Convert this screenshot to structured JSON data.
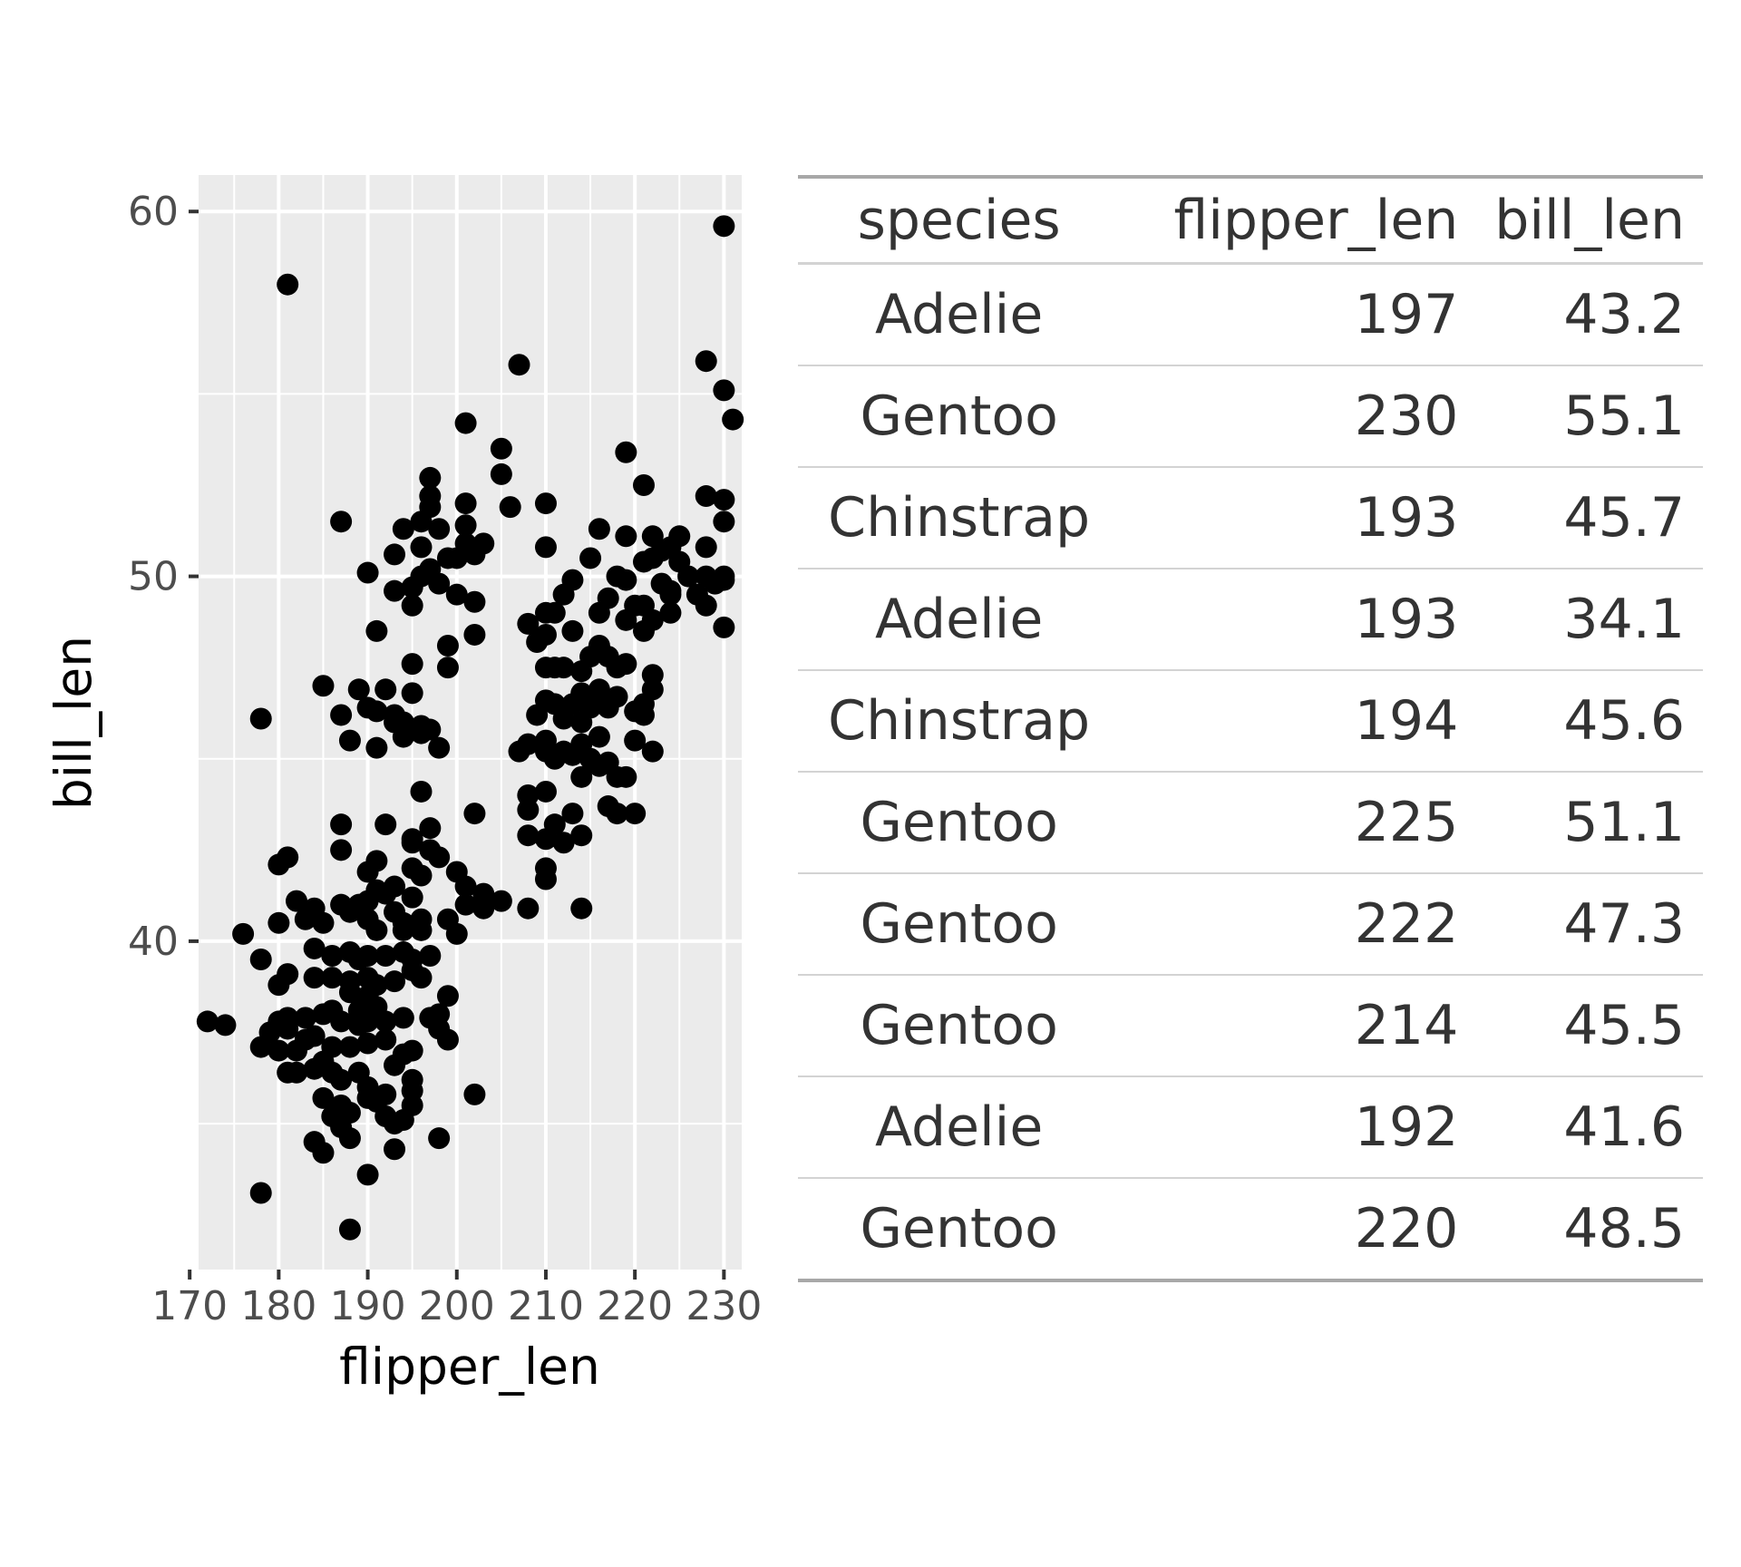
{
  "chart_data": [
    {
      "type": "scatter",
      "xlabel": "flipper_len",
      "ylabel": "bill_len",
      "xlim": [
        171,
        232
      ],
      "ylim": [
        31,
        61
      ],
      "x_ticks": [
        170,
        180,
        190,
        200,
        210,
        220,
        230
      ],
      "y_ticks": [
        40,
        50,
        60
      ],
      "grid": true,
      "panel_color": "#ebebeb",
      "point_color": "#000000",
      "points": [
        [
          181,
          58.0
        ],
        [
          230,
          59.6
        ],
        [
          207,
          55.8
        ],
        [
          228,
          55.9
        ],
        [
          230,
          55.1
        ],
        [
          231,
          54.3
        ],
        [
          201,
          54.2
        ],
        [
          205,
          53.5
        ],
        [
          219,
          53.4
        ],
        [
          205,
          52.8
        ],
        [
          197,
          52.7
        ],
        [
          221,
          52.5
        ],
        [
          197,
          52.2
        ],
        [
          228,
          52.2
        ],
        [
          230,
          52.1
        ],
        [
          201,
          52.0
        ],
        [
          197,
          51.9
        ],
        [
          210,
          52.0
        ],
        [
          206,
          51.9
        ],
        [
          187,
          51.5
        ],
        [
          230,
          51.5
        ],
        [
          196,
          51.5
        ],
        [
          201,
          51.4
        ],
        [
          194,
          51.3
        ],
        [
          198,
          51.3
        ],
        [
          216,
          51.3
        ],
        [
          222,
          51.1
        ],
        [
          219,
          51.1
        ],
        [
          225,
          51.1
        ],
        [
          201,
          50.9
        ],
        [
          203,
          50.9
        ],
        [
          196,
          50.8
        ],
        [
          210,
          50.8
        ],
        [
          224,
          50.8
        ],
        [
          223,
          50.7
        ],
        [
          228,
          50.8
        ],
        [
          193,
          50.6
        ],
        [
          202,
          50.6
        ],
        [
          215,
          50.5
        ],
        [
          221,
          50.4
        ],
        [
          222,
          50.5
        ],
        [
          225,
          50.4
        ],
        [
          199,
          50.5
        ],
        [
          200,
          50.5
        ],
        [
          190,
          50.1
        ],
        [
          197,
          50.2
        ],
        [
          196,
          50.0
        ],
        [
          218,
          50.0
        ],
        [
          226,
          50.0
        ],
        [
          228,
          50.0
        ],
        [
          230,
          50.0
        ],
        [
          219,
          49.9
        ],
        [
          223,
          49.8
        ],
        [
          229,
          49.8
        ],
        [
          195,
          49.7
        ],
        [
          198,
          49.8
        ],
        [
          200,
          49.5
        ],
        [
          193,
          49.6
        ],
        [
          213,
          49.9
        ],
        [
          212,
          49.5
        ],
        [
          217,
          49.4
        ],
        [
          224,
          49.5
        ],
        [
          230,
          49.9
        ],
        [
          227,
          49.5
        ],
        [
          220,
          49.2
        ],
        [
          221,
          49.2
        ],
        [
          224,
          49.6
        ],
        [
          228,
          49.2
        ],
        [
          195,
          49.2
        ],
        [
          202,
          49.3
        ],
        [
          210,
          49.0
        ],
        [
          211,
          49.0
        ],
        [
          216,
          49.0
        ],
        [
          219,
          48.8
        ],
        [
          222,
          48.8
        ],
        [
          224,
          49.0
        ],
        [
          191,
          48.5
        ],
        [
          208,
          48.7
        ],
        [
          209,
          48.2
        ],
        [
          210,
          48.4
        ],
        [
          213,
          48.5
        ],
        [
          221,
          48.5
        ],
        [
          230,
          48.6
        ],
        [
          202,
          48.4
        ],
        [
          199,
          48.1
        ],
        [
          216,
          48.1
        ],
        [
          217,
          47.8
        ],
        [
          215,
          47.8
        ],
        [
          218,
          47.5
        ],
        [
          219,
          47.6
        ],
        [
          195,
          47.6
        ],
        [
          199,
          47.5
        ],
        [
          210,
          47.5
        ],
        [
          211,
          47.5
        ],
        [
          212,
          47.5
        ],
        [
          214,
          47.4
        ],
        [
          222,
          47.3
        ],
        [
          222,
          46.9
        ],
        [
          214,
          46.8
        ],
        [
          216,
          46.9
        ],
        [
          218,
          46.7
        ],
        [
          221,
          46.5
        ],
        [
          217,
          46.4
        ],
        [
          185,
          47.0
        ],
        [
          189,
          46.9
        ],
        [
          192,
          46.9
        ],
        [
          195,
          46.8
        ],
        [
          210,
          46.6
        ],
        [
          211,
          46.5
        ],
        [
          213,
          46.5
        ],
        [
          215,
          46.6
        ],
        [
          220,
          46.3
        ],
        [
          221,
          46.2
        ],
        [
          209,
          46.2
        ],
        [
          212,
          46.1
        ],
        [
          214,
          46.0
        ],
        [
          215,
          46.4
        ],
        [
          190,
          46.4
        ],
        [
          191,
          46.3
        ],
        [
          193,
          46.2
        ],
        [
          196,
          45.9
        ],
        [
          195,
          45.8
        ],
        [
          197,
          45.8
        ],
        [
          187,
          46.2
        ],
        [
          178,
          46.1
        ],
        [
          193,
          46.0
        ],
        [
          194,
          46.0
        ],
        [
          196,
          45.7
        ],
        [
          188,
          45.5
        ],
        [
          191,
          45.3
        ],
        [
          194,
          45.6
        ],
        [
          198,
          45.3
        ],
        [
          208,
          45.4
        ],
        [
          210,
          45.5
        ],
        [
          212,
          45.2
        ],
        [
          214,
          45.4
        ],
        [
          216,
          45.6
        ],
        [
          220,
          45.5
        ],
        [
          222,
          45.2
        ],
        [
          207,
          45.2
        ],
        [
          210,
          45.2
        ],
        [
          211,
          45.0
        ],
        [
          213,
          45.1
        ],
        [
          215,
          45.0
        ],
        [
          216,
          44.8
        ],
        [
          217,
          44.9
        ],
        [
          219,
          44.5
        ],
        [
          214,
          44.5
        ],
        [
          218,
          44.5
        ],
        [
          210,
          44.1
        ],
        [
          208,
          43.6
        ],
        [
          208,
          44.0
        ],
        [
          213,
          43.5
        ],
        [
          218,
          43.5
        ],
        [
          220,
          43.5
        ],
        [
          217,
          43.7
        ],
        [
          211,
          43.2
        ],
        [
          212,
          42.7
        ],
        [
          196,
          44.1
        ],
        [
          202,
          43.5
        ],
        [
          187,
          43.2
        ],
        [
          192,
          43.2
        ],
        [
          197,
          43.1
        ],
        [
          195,
          42.8
        ],
        [
          195,
          42.7
        ],
        [
          197,
          42.5
        ],
        [
          198,
          42.3
        ],
        [
          208,
          42.9
        ],
        [
          210,
          42.8
        ],
        [
          214,
          42.9
        ],
        [
          181,
          42.3
        ],
        [
          180,
          42.1
        ],
        [
          187,
          42.5
        ],
        [
          191,
          42.2
        ],
        [
          190,
          41.9
        ],
        [
          195,
          42.0
        ],
        [
          196,
          41.8
        ],
        [
          200,
          41.9
        ],
        [
          201,
          41.5
        ],
        [
          203,
          41.3
        ],
        [
          201,
          41.0
        ],
        [
          203,
          40.9
        ],
        [
          205,
          41.1
        ],
        [
          210,
          42.0
        ],
        [
          210,
          41.7
        ],
        [
          208,
          40.9
        ],
        [
          214,
          40.9
        ],
        [
          182,
          41.1
        ],
        [
          184,
          40.9
        ],
        [
          183,
          40.6
        ],
        [
          180,
          40.5
        ],
        [
          176,
          40.2
        ],
        [
          188,
          40.8
        ],
        [
          187,
          41.0
        ],
        [
          189,
          41.0
        ],
        [
          190,
          41.1
        ],
        [
          191,
          41.4
        ],
        [
          192,
          41.3
        ],
        [
          193,
          41.5
        ],
        [
          195,
          41.2
        ],
        [
          193,
          40.8
        ],
        [
          194,
          40.5
        ],
        [
          196,
          40.6
        ],
        [
          190,
          40.6
        ],
        [
          191,
          40.3
        ],
        [
          194,
          40.3
        ],
        [
          196,
          40.3
        ],
        [
          199,
          40.6
        ],
        [
          200,
          40.2
        ],
        [
          185,
          40.5
        ],
        [
          184,
          39.8
        ],
        [
          186,
          39.6
        ],
        [
          188,
          39.7
        ],
        [
          189,
          39.5
        ],
        [
          190,
          39.6
        ],
        [
          192,
          39.6
        ],
        [
          194,
          39.7
        ],
        [
          195,
          39.5
        ],
        [
          197,
          39.6
        ],
        [
          178,
          39.5
        ],
        [
          181,
          39.1
        ],
        [
          180,
          38.8
        ],
        [
          184,
          39.0
        ],
        [
          186,
          39.0
        ],
        [
          188,
          38.9
        ],
        [
          190,
          39.0
        ],
        [
          191,
          38.8
        ],
        [
          193,
          38.9
        ],
        [
          195,
          39.2
        ],
        [
          196,
          39.0
        ],
        [
          188,
          38.6
        ],
        [
          190,
          38.5
        ],
        [
          191,
          38.2
        ],
        [
          189,
          38.1
        ],
        [
          186,
          38.1
        ],
        [
          185,
          38.0
        ],
        [
          183,
          37.9
        ],
        [
          181,
          37.9
        ],
        [
          180,
          37.8
        ],
        [
          172,
          37.8
        ],
        [
          174,
          37.7
        ],
        [
          187,
          37.8
        ],
        [
          189,
          37.7
        ],
        [
          190,
          37.8
        ],
        [
          192,
          37.8
        ],
        [
          194,
          37.9
        ],
        [
          197,
          37.9
        ],
        [
          199,
          38.5
        ],
        [
          198,
          38.0
        ],
        [
          198,
          37.6
        ],
        [
          199,
          37.3
        ],
        [
          181,
          37.6
        ],
        [
          183,
          37.3
        ],
        [
          182,
          37.0
        ],
        [
          184,
          37.4
        ],
        [
          186,
          37.1
        ],
        [
          188,
          37.1
        ],
        [
          190,
          37.2
        ],
        [
          192,
          37.3
        ],
        [
          193,
          36.6
        ],
        [
          194,
          36.9
        ],
        [
          195,
          37.0
        ],
        [
          178,
          37.1
        ],
        [
          179,
          37.5
        ],
        [
          180,
          37.0
        ],
        [
          185,
          36.7
        ],
        [
          184,
          36.5
        ],
        [
          186,
          36.4
        ],
        [
          187,
          36.2
        ],
        [
          189,
          36.4
        ],
        [
          190,
          36.0
        ],
        [
          192,
          35.8
        ],
        [
          195,
          36.2
        ],
        [
          195,
          35.9
        ],
        [
          181,
          36.4
        ],
        [
          182,
          36.4
        ],
        [
          185,
          35.7
        ],
        [
          187,
          35.5
        ],
        [
          188,
          35.3
        ],
        [
          190,
          35.7
        ],
        [
          191,
          35.6
        ],
        [
          192,
          35.2
        ],
        [
          194,
          35.1
        ],
        [
          195,
          35.5
        ],
        [
          186,
          35.2
        ],
        [
          187,
          34.9
        ],
        [
          193,
          35.0
        ],
        [
          198,
          34.6
        ],
        [
          202,
          35.8
        ],
        [
          184,
          34.5
        ],
        [
          185,
          34.2
        ],
        [
          188,
          34.6
        ],
        [
          193,
          34.3
        ],
        [
          190,
          33.6
        ],
        [
          178,
          33.1
        ],
        [
          188,
          32.1
        ]
      ]
    },
    {
      "type": "table",
      "columns": [
        "species",
        "flipper_len",
        "bill_len"
      ],
      "rows": [
        [
          "Adelie",
          "197",
          "43.2"
        ],
        [
          "Gentoo",
          "230",
          "55.1"
        ],
        [
          "Chinstrap",
          "193",
          "45.7"
        ],
        [
          "Adelie",
          "193",
          "34.1"
        ],
        [
          "Chinstrap",
          "194",
          "45.6"
        ],
        [
          "Gentoo",
          "225",
          "51.1"
        ],
        [
          "Gentoo",
          "222",
          "47.3"
        ],
        [
          "Gentoo",
          "214",
          "45.5"
        ],
        [
          "Adelie",
          "192",
          "41.6"
        ],
        [
          "Gentoo",
          "220",
          "48.5"
        ]
      ]
    }
  ]
}
